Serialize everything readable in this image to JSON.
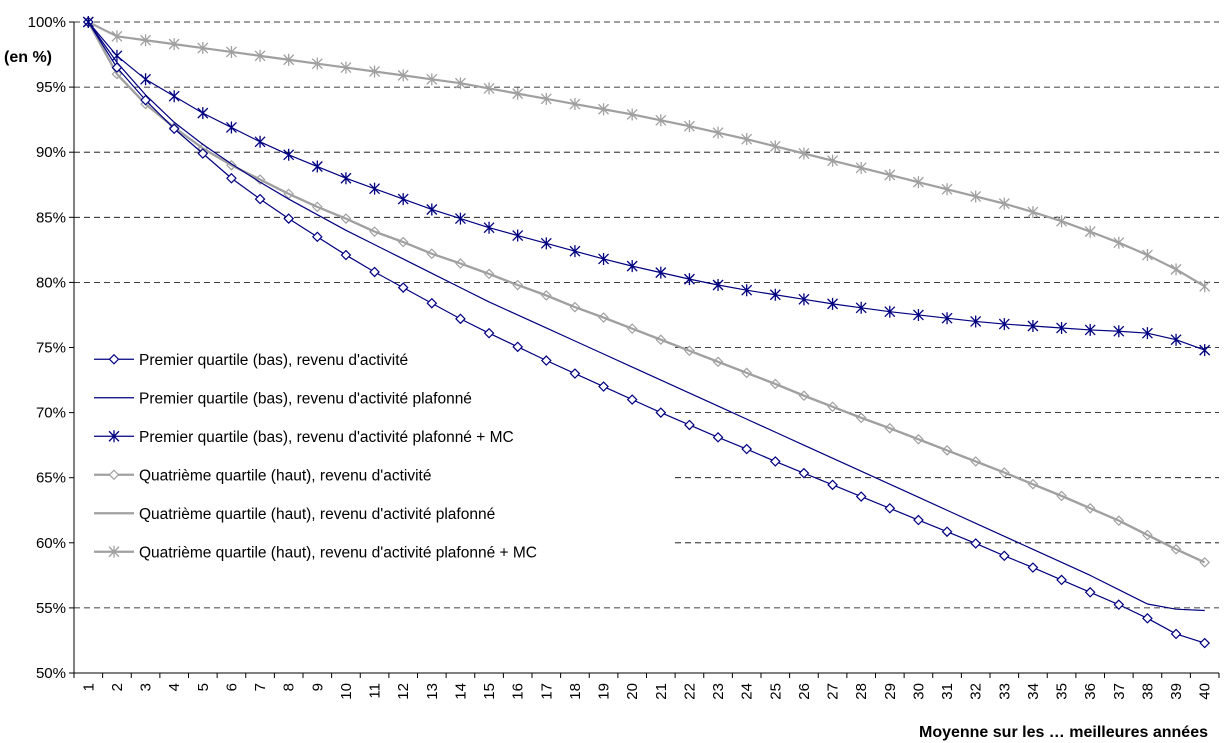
{
  "chart_data": {
    "type": "line",
    "ylabel": "(en %)",
    "xlabel": "Moyenne sur les … meilleures années",
    "ylim": [
      50,
      100
    ],
    "ytick_step": 5,
    "ytick_suffix": "%",
    "x": [
      1,
      2,
      3,
      4,
      5,
      6,
      7,
      8,
      9,
      10,
      11,
      12,
      13,
      14,
      15,
      16,
      17,
      18,
      19,
      20,
      21,
      22,
      23,
      24,
      25,
      26,
      27,
      28,
      29,
      30,
      31,
      32,
      33,
      34,
      35,
      36,
      37,
      38,
      39,
      40
    ],
    "grid": "horizontal dashed",
    "legend_position": "bottom-left inside plot",
    "series": [
      {
        "name": "Premier quartile (bas), revenu d'activité",
        "color": "#000080",
        "width": 1.2,
        "marker": "diamond",
        "values": [
          100,
          96.5,
          94,
          91.8,
          89.9,
          88.0,
          86.4,
          84.9,
          83.5,
          82.1,
          80.8,
          79.6,
          78.4,
          77.2,
          76.1,
          75.05,
          74.0,
          73.0,
          72.0,
          71.0,
          70.0,
          69.05,
          68.1,
          67.2,
          66.25,
          65.35,
          64.45,
          63.55,
          62.65,
          61.75,
          60.85,
          59.95,
          59.0,
          58.1,
          57.15,
          56.2,
          55.25,
          54.2,
          53.0,
          52.3
        ]
      },
      {
        "name": "Premier quartile (bas), revenu d'activité plafonné",
        "color": "#000080",
        "width": 1.2,
        "marker": "none",
        "values": [
          100,
          96.9,
          94.4,
          92.3,
          90.6,
          89.1,
          87.7,
          86.4,
          85.2,
          84.0,
          82.9,
          81.8,
          80.7,
          79.6,
          78.5,
          77.5,
          76.5,
          75.5,
          74.5,
          73.5,
          72.5,
          71.5,
          70.5,
          69.5,
          68.5,
          67.5,
          66.5,
          65.5,
          64.5,
          63.5,
          62.5,
          61.5,
          60.5,
          59.5,
          58.5,
          57.5,
          56.4,
          55.3,
          54.9,
          54.8
        ]
      },
      {
        "name": "Premier quartile (bas), revenu d'activité plafonné + MC",
        "color": "#000080",
        "width": 1.2,
        "marker": "star",
        "values": [
          100,
          97.4,
          95.6,
          94.3,
          93.0,
          91.9,
          90.8,
          89.8,
          88.9,
          88.0,
          87.2,
          86.4,
          85.6,
          84.9,
          84.2,
          83.6,
          83.0,
          82.4,
          81.8,
          81.25,
          80.75,
          80.25,
          79.8,
          79.4,
          79.05,
          78.7,
          78.35,
          78.05,
          77.75,
          77.5,
          77.25,
          77.0,
          76.8,
          76.65,
          76.5,
          76.35,
          76.25,
          76.1,
          75.6,
          74.8
        ]
      },
      {
        "name": "Quatrième quartile (haut), revenu d'activité",
        "color": "#a0a0a0",
        "width": 2.2,
        "marker": "diamond",
        "values": [
          100,
          96.0,
          93.7,
          91.9,
          90.3,
          89.0,
          87.9,
          86.8,
          85.8,
          84.9,
          83.9,
          83.1,
          82.2,
          81.45,
          80.65,
          79.8,
          79.0,
          78.1,
          77.3,
          76.45,
          75.6,
          74.75,
          73.9,
          73.05,
          72.2,
          71.3,
          70.45,
          69.6,
          68.8,
          67.95,
          67.1,
          66.25,
          65.4,
          64.5,
          63.6,
          62.65,
          61.7,
          60.6,
          59.5,
          58.5
        ]
      },
      {
        "name": "Quatrième quartile (haut), revenu d'activité plafonné",
        "color": "#a0a0a0",
        "width": 2.2,
        "marker": "none",
        "values": [
          100,
          96.0,
          93.7,
          91.9,
          90.3,
          89.0,
          87.9,
          86.8,
          85.8,
          84.9,
          83.9,
          83.1,
          82.2,
          81.45,
          80.65,
          79.8,
          79.0,
          78.1,
          77.3,
          76.45,
          75.6,
          74.75,
          73.9,
          73.05,
          72.2,
          71.3,
          70.45,
          69.6,
          68.8,
          67.95,
          67.1,
          66.25,
          65.4,
          64.5,
          63.6,
          62.65,
          61.7,
          60.6,
          59.5,
          58.5
        ]
      },
      {
        "name": "Quatrième quartile (haut), revenu d'activité plafonné + MC",
        "color": "#a0a0a0",
        "width": 2.2,
        "marker": "star",
        "values": [
          100,
          98.9,
          98.6,
          98.3,
          98.0,
          97.7,
          97.4,
          97.1,
          96.8,
          96.5,
          96.2,
          95.9,
          95.6,
          95.3,
          94.9,
          94.5,
          94.1,
          93.7,
          93.3,
          92.9,
          92.45,
          92.0,
          91.5,
          91.0,
          90.45,
          89.9,
          89.35,
          88.8,
          88.25,
          87.7,
          87.15,
          86.6,
          86.05,
          85.4,
          84.7,
          83.9,
          83.05,
          82.1,
          81.0,
          79.7
        ]
      }
    ]
  }
}
